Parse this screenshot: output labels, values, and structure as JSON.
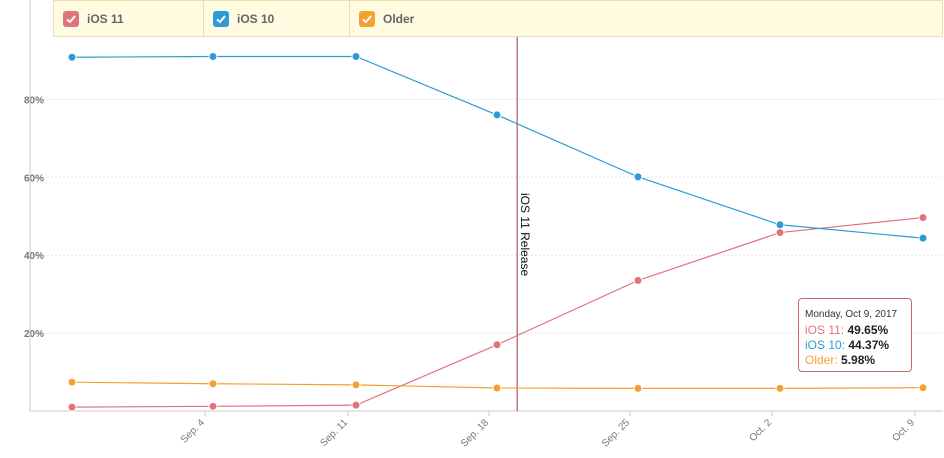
{
  "colors": {
    "ios11": "#e0737b",
    "ios10": "#2e9ad8",
    "older": "#f5a035",
    "release_line": "#9b3a3a",
    "grid": "#e4e4e4",
    "axis": "#c8c8c8"
  },
  "legend": [
    {
      "key": "ios11",
      "label": "iOS 11",
      "icon": "check-icon"
    },
    {
      "key": "ios10",
      "label": "iOS 10",
      "icon": "check-icon"
    },
    {
      "key": "older",
      "label": "Older",
      "icon": "check-icon"
    }
  ],
  "chart_data": {
    "type": "line",
    "x": [
      "2017-08-28",
      "2017-09-04",
      "2017-09-11",
      "2017-09-18",
      "2017-09-25",
      "2017-10-02",
      "2017-10-09"
    ],
    "x_tick_labels": [
      "",
      "Sep. 4",
      "Sep. 11",
      "Sep. 18",
      "Sep. 25",
      "Oct. 2",
      "Oct. 9"
    ],
    "y_tick_labels": [
      "20%",
      "40%",
      "60%",
      "80%"
    ],
    "y_ticks": [
      20,
      40,
      60,
      80
    ],
    "ylim": [
      0,
      96
    ],
    "grid": true,
    "legend_position": "top",
    "series": [
      {
        "name": "iOS 11",
        "key": "ios11",
        "values": [
          1.0,
          1.2,
          1.5,
          17.0,
          33.5,
          45.8,
          49.65
        ]
      },
      {
        "name": "iOS 10",
        "key": "ios10",
        "values": [
          90.8,
          91.0,
          91.0,
          76.0,
          60.1,
          47.8,
          44.37
        ]
      },
      {
        "name": "Older",
        "key": "older",
        "values": [
          7.4,
          7.0,
          6.7,
          5.9,
          5.8,
          5.8,
          5.98
        ]
      }
    ],
    "annotations": [
      {
        "text": "iOS 11 Release",
        "x": "2017-09-19"
      }
    ]
  },
  "tooltip": {
    "date": "Monday, Oct 9, 2017",
    "rows": [
      {
        "key": "ios11",
        "label": "iOS 11:",
        "value": "49.65%"
      },
      {
        "key": "ios10",
        "label": "iOS 10:",
        "value": "44.37%"
      },
      {
        "key": "older",
        "label": "Older:",
        "value": "5.98%"
      }
    ]
  }
}
